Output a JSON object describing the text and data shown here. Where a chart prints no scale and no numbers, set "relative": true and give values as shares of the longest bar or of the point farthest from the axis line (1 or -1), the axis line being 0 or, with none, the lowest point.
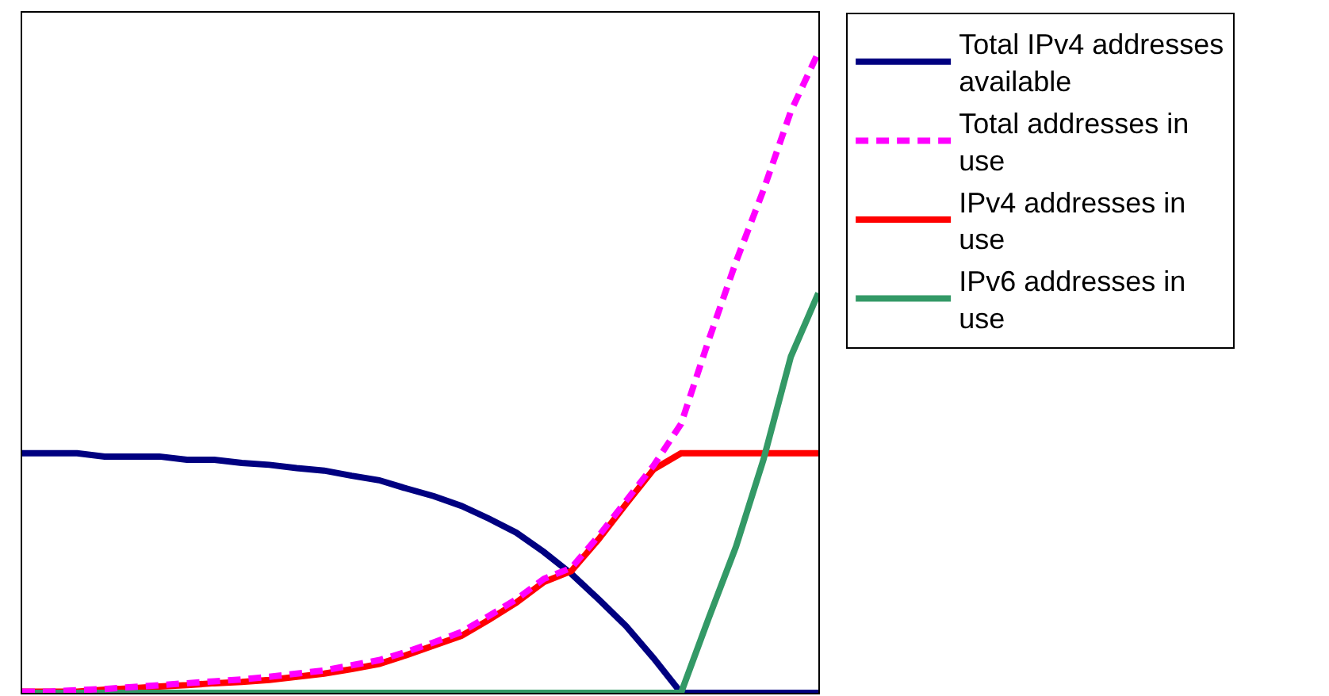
{
  "chart_data": {
    "type": "line",
    "relative": true,
    "categories": [
      null,
      null,
      null,
      null,
      null,
      null,
      null,
      null,
      null,
      null,
      null,
      null,
      null,
      null,
      null,
      null,
      null,
      null,
      null,
      null,
      null,
      null,
      null,
      null,
      null,
      null,
      null,
      null,
      null,
      null
    ],
    "series": [
      {
        "name": "Total IPv4 addresses available",
        "color": "#000080",
        "values": [
          0.374,
          0.374,
          0.374,
          0.369,
          0.369,
          0.369,
          0.364,
          0.364,
          0.359,
          0.356,
          0.351,
          0.347,
          0.339,
          0.332,
          0.319,
          0.307,
          0.292,
          0.272,
          0.25,
          0.22,
          0.186,
          0.146,
          0.104,
          0.054,
          0,
          0,
          0,
          0,
          0,
          0
        ]
      },
      {
        "name": "Total addresses in use",
        "color": "#ff00ff",
        "line_style": "dashed",
        "values": [
          0.002,
          0.002,
          0.004,
          0.006,
          0.009,
          0.012,
          0.015,
          0.018,
          0.021,
          0.025,
          0.03,
          0.035,
          0.043,
          0.051,
          0.064,
          0.079,
          0.095,
          0.12,
          0.146,
          0.178,
          0.195,
          0.245,
          0.3,
          0.355,
          0.42,
          0.55,
          0.673,
          0.785,
          0.908,
          1.0
        ]
      },
      {
        "name": "IPv4 addresses in use",
        "color": "#ff0000",
        "values": [
          0.002,
          0.002,
          0.002,
          0.005,
          0.007,
          0.01,
          0.012,
          0.015,
          0.017,
          0.02,
          0.025,
          0.03,
          0.037,
          0.045,
          0.059,
          0.074,
          0.089,
          0.114,
          0.141,
          0.173,
          0.19,
          0.24,
          0.295,
          0.349,
          0.374,
          0.374,
          0.374,
          0.374,
          0.374,
          0.374
        ]
      },
      {
        "name": "IPv6 addresses in use",
        "color": "#339966",
        "values": [
          0,
          0,
          0,
          0,
          0,
          0,
          0,
          0,
          0,
          0,
          0,
          0,
          0,
          0,
          0,
          0,
          0,
          0,
          0,
          0,
          0,
          0,
          0,
          0,
          0,
          0.116,
          0.228,
          0.364,
          0.525,
          0.624
        ]
      }
    ],
    "legend": "right",
    "marker": "none"
  }
}
